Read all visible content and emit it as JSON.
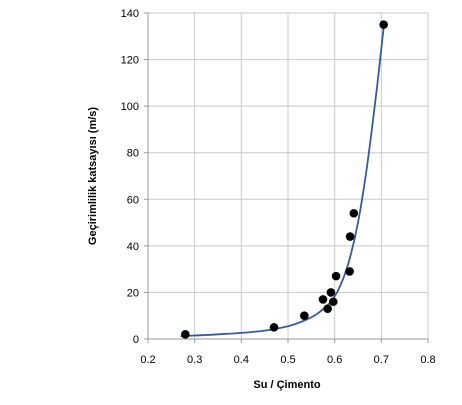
{
  "chart_data": {
    "type": "scatter",
    "title": "",
    "xlabel": "Su / Çimento",
    "ylabel": "Geçirimlilik katsayısı (m/s)",
    "xlim": [
      0.2,
      0.8
    ],
    "ylim": [
      0,
      140
    ],
    "x_ticks": [
      "0.2",
      "0.3",
      "0.4",
      "0.5",
      "0.6",
      "0.7",
      "0.8"
    ],
    "y_ticks": [
      "0",
      "20",
      "40",
      "60",
      "80",
      "100",
      "120",
      "140"
    ],
    "grid": "both",
    "legend": "none",
    "series": [
      {
        "points": [
          {
            "x": 0.28,
            "y": 2
          },
          {
            "x": 0.47,
            "y": 5
          },
          {
            "x": 0.535,
            "y": 10
          },
          {
            "x": 0.575,
            "y": 17
          },
          {
            "x": 0.585,
            "y": 13
          },
          {
            "x": 0.592,
            "y": 20
          },
          {
            "x": 0.597,
            "y": 16
          },
          {
            "x": 0.603,
            "y": 27
          },
          {
            "x": 0.632,
            "y": 29
          },
          {
            "x": 0.633,
            "y": 44
          },
          {
            "x": 0.641,
            "y": 54
          },
          {
            "x": 0.705,
            "y": 135
          }
        ]
      }
    ],
    "trendline": {
      "type": "exponential",
      "x_range": [
        0.27,
        0.705
      ],
      "points": [
        {
          "x": 0.27,
          "y": 1.2
        },
        {
          "x": 0.3,
          "y": 1.5
        },
        {
          "x": 0.35,
          "y": 2.0
        },
        {
          "x": 0.4,
          "y": 2.6
        },
        {
          "x": 0.45,
          "y": 3.6
        },
        {
          "x": 0.5,
          "y": 5.5
        },
        {
          "x": 0.53,
          "y": 7.5
        },
        {
          "x": 0.56,
          "y": 10.5
        },
        {
          "x": 0.59,
          "y": 15.5
        },
        {
          "x": 0.61,
          "y": 22
        },
        {
          "x": 0.63,
          "y": 33
        },
        {
          "x": 0.65,
          "y": 50
        },
        {
          "x": 0.67,
          "y": 75
        },
        {
          "x": 0.69,
          "y": 107
        },
        {
          "x": 0.705,
          "y": 134
        }
      ]
    },
    "colors": {
      "marker": "#000000",
      "trendline": "#3a5a9a",
      "grid": "#c8c8c8",
      "axis": "#9a9a9a"
    }
  }
}
